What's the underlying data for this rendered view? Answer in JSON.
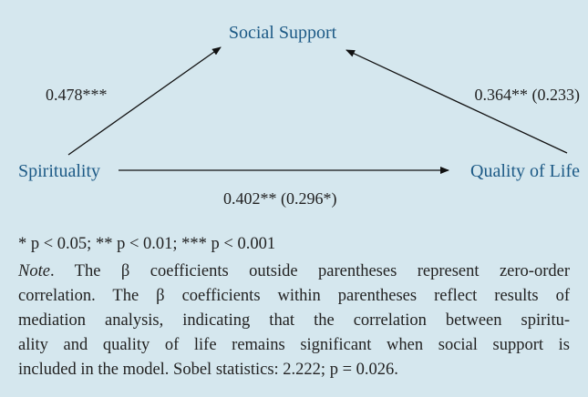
{
  "nodes": [
    {
      "label": "Social Support"
    },
    {
      "label": "Spirituality"
    },
    {
      "label": "Quality of Life"
    }
  ],
  "edges": [
    {
      "label": "0.478***"
    },
    {
      "label": "0.364** (0.233)"
    },
    {
      "label": "0.402** (0.296*)"
    }
  ],
  "legend": "* p < 0.05; ** p < 0.01; *** p < 0.001",
  "note": {
    "lead": "Note",
    "lines": [
      ". The β coefficients outside parentheses represent zero-order",
      "correlation. The β coefficients within parentheses reflect results of",
      "mediation analysis, indicating that the correlation between spiritu-",
      "ality and quality of life remains significant when social support is",
      "included in the model. Sobel statistics: 2.222; p = 0.026."
    ]
  }
}
